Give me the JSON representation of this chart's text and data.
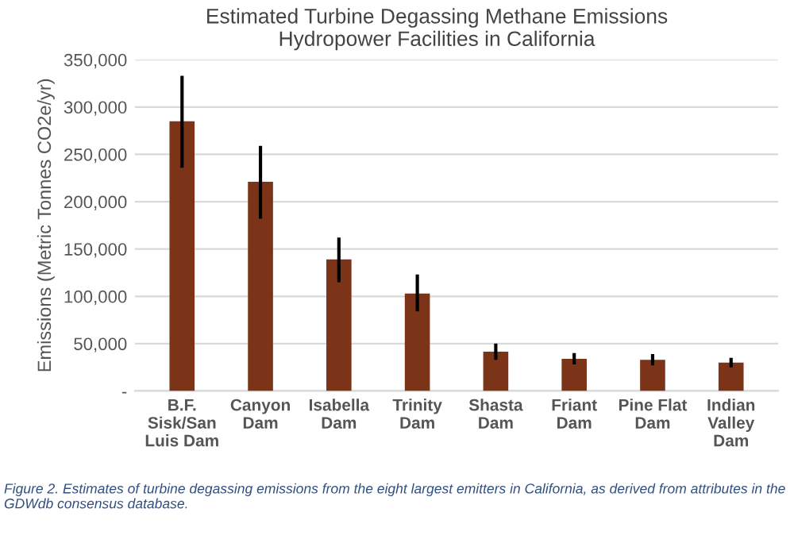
{
  "chart_data": {
    "type": "bar",
    "title": "Estimated Turbine Degassing Methane Emissions\nHydropower Facilities in California",
    "ylabel": "Emissions (Metric Tonnes CO2e/yr)",
    "categories": [
      "B.F.\nSisk/San\nLuis Dam",
      "Canyon\nDam",
      "Isabella\nDam",
      "Trinity\nDam",
      "Shasta\nDam",
      "Friant\nDam",
      "Pine Flat\nDam",
      "Indian\nValley\nDam"
    ],
    "values": [
      285000,
      221000,
      139000,
      103000,
      41500,
      34000,
      33000,
      30000
    ],
    "errors": [
      [
        236000,
        333000
      ],
      [
        182000,
        259000
      ],
      [
        115000,
        162000
      ],
      [
        84000,
        123000
      ],
      [
        33000,
        50000
      ],
      [
        28000,
        40000
      ],
      [
        27000,
        39000
      ],
      [
        25000,
        35000
      ]
    ],
    "color": "#7b3418",
    "ylim": [
      0,
      350000
    ],
    "yticks": [
      {
        "value": 0,
        "label": "-"
      },
      {
        "value": 50000,
        "label": "50,000"
      },
      {
        "value": 100000,
        "label": "100,000"
      },
      {
        "value": 150000,
        "label": "150,000"
      },
      {
        "value": 200000,
        "label": "200,000"
      },
      {
        "value": 250000,
        "label": "250,000"
      },
      {
        "value": 300000,
        "label": "300,000"
      },
      {
        "value": 350000,
        "label": "350,000"
      }
    ],
    "grid": "y",
    "annotations": [
      "Figure 2. Estimates of turbine degassing emissions from the eight largest emitters in California, as derived from attributes in the GDWdb consensus database."
    ]
  }
}
